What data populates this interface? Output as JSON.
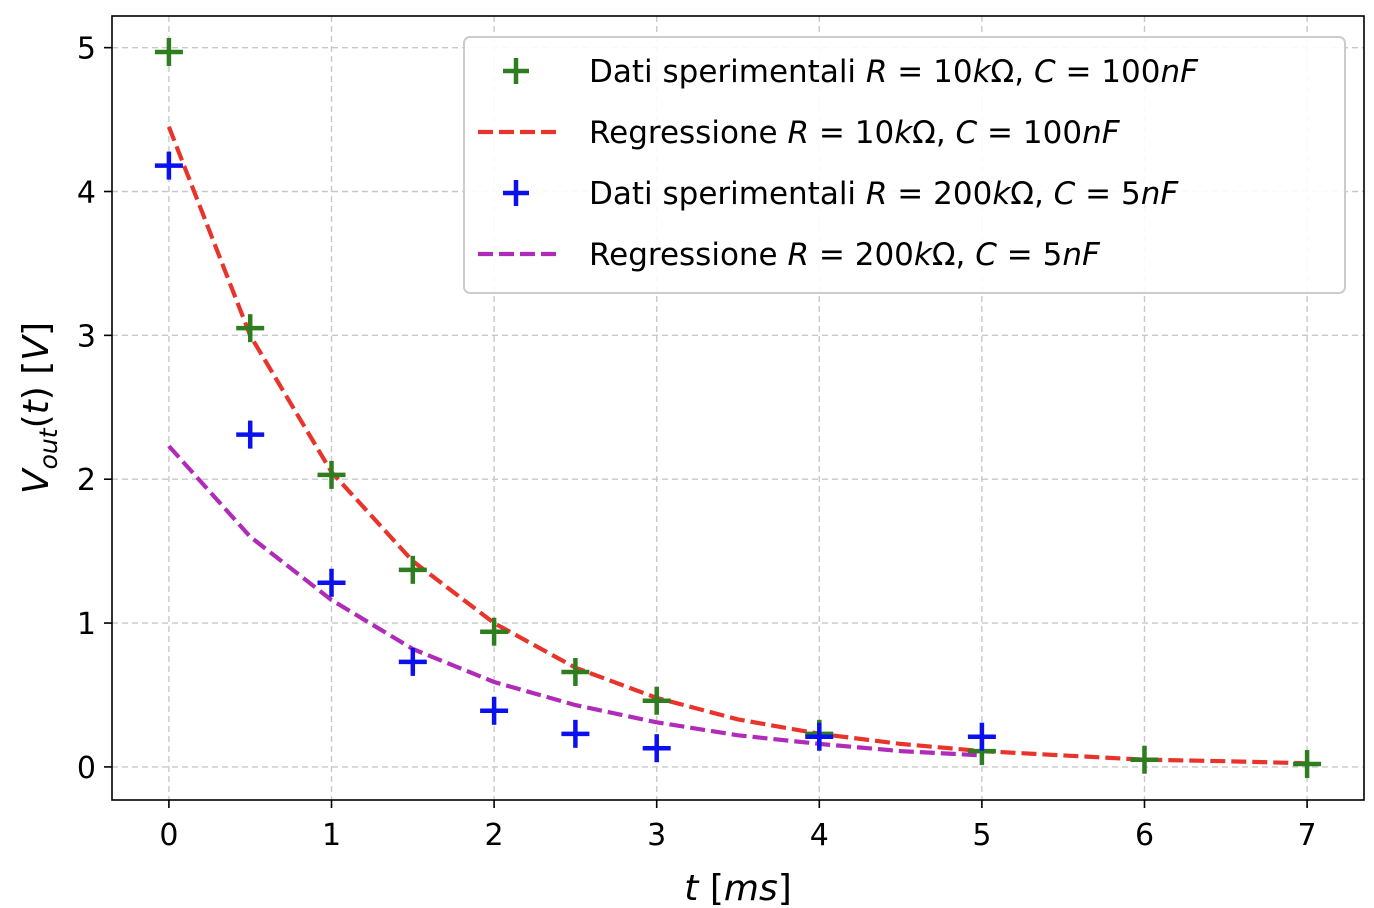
{
  "chart_data": {
    "type": "scatter",
    "xlabel": "t [ms]",
    "ylabel": "V_out(t) [V]",
    "xlim": [
      -0.35,
      7.35
    ],
    "ylim": [
      -0.23,
      5.22
    ],
    "xticks": [
      "0",
      "1",
      "2",
      "3",
      "4",
      "5",
      "6",
      "7"
    ],
    "yticks": [
      "0",
      "1",
      "2",
      "3",
      "4",
      "5"
    ],
    "grid": true,
    "legend_position": "top-right",
    "series": [
      {
        "name": "Dati sperimentali R=10kΩ, C=100nF",
        "kind": "points",
        "marker": "+",
        "color": "#2e7d1f",
        "x": [
          0,
          0.5,
          1,
          1.5,
          2,
          2.5,
          3,
          4,
          5,
          6,
          7
        ],
        "y": [
          4.97,
          3.05,
          2.03,
          1.37,
          0.94,
          0.66,
          0.46,
          0.23,
          0.11,
          0.05,
          0.02
        ]
      },
      {
        "name": "Regressione R=10kΩ, C=100nF",
        "kind": "line",
        "dashed": true,
        "color": "#e8342b",
        "x": [
          0,
          0.5,
          1,
          1.5,
          2,
          2.5,
          3,
          3.5,
          4,
          4.5,
          5,
          5.5,
          6,
          6.5,
          7
        ],
        "y": [
          4.45,
          3.0,
          2.05,
          1.43,
          1.0,
          0.69,
          0.48,
          0.33,
          0.23,
          0.16,
          0.11,
          0.08,
          0.05,
          0.04,
          0.025
        ]
      },
      {
        "name": "Dati sperimentali R=200kΩ, C=5nF",
        "kind": "points",
        "marker": "+",
        "color": "#0a10ee",
        "x": [
          0,
          0.5,
          1,
          1.5,
          2,
          2.5,
          3,
          4,
          5
        ],
        "y": [
          4.18,
          2.31,
          1.28,
          0.73,
          0.39,
          0.23,
          0.13,
          0.21,
          0.21
        ]
      },
      {
        "name": "Regressione R=200kΩ, C=5nF",
        "kind": "line",
        "dashed": true,
        "color": "#b02bb8",
        "x": [
          0,
          0.5,
          1,
          1.5,
          2,
          2.5,
          3,
          3.5,
          4,
          4.5,
          5
        ],
        "y": [
          2.23,
          1.6,
          1.16,
          0.82,
          0.59,
          0.43,
          0.31,
          0.22,
          0.16,
          0.11,
          0.08
        ]
      }
    ]
  }
}
